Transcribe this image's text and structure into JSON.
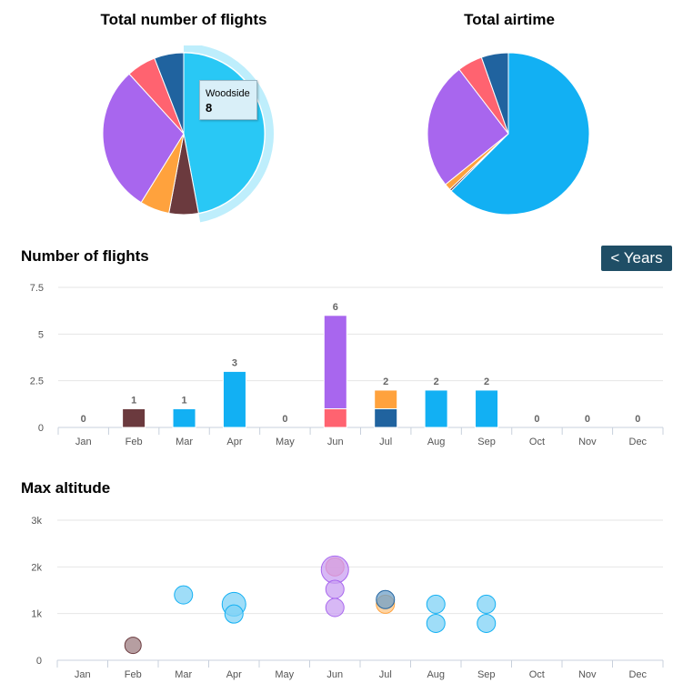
{
  "charts": {
    "pie_flights_title": "Total number of flights",
    "pie_airtime_title": "Total airtime",
    "bar_title": "Number of flights",
    "bubble_title": "Max altitude",
    "years_button": "< Years"
  },
  "tooltip": {
    "name": "Woodside",
    "value": "8"
  },
  "chart_data": [
    {
      "type": "pie",
      "title": "Total number of flights",
      "slices": [
        {
          "name": "Woodside",
          "value": 8,
          "color": "#29c8f5",
          "highlighted": true
        },
        {
          "name": "",
          "value": 1,
          "color": "#6b3a3e"
        },
        {
          "name": "",
          "value": 1,
          "color": "#ffa23d"
        },
        {
          "name": "",
          "value": 5,
          "color": "#a866ee"
        },
        {
          "name": "",
          "value": 1,
          "color": "#ff6370"
        },
        {
          "name": "",
          "value": 1,
          "color": "#20639f"
        }
      ]
    },
    {
      "type": "pie",
      "title": "Total airtime",
      "slices": [
        {
          "name": "",
          "value": 62.5,
          "color": "#12b0f3"
        },
        {
          "name": "",
          "value": 0.4,
          "color": "#6b3a3e"
        },
        {
          "name": "",
          "value": 1.3,
          "color": "#ffa23d"
        },
        {
          "name": "",
          "value": 25.4,
          "color": "#a866ee"
        },
        {
          "name": "",
          "value": 5.0,
          "color": "#ff6370"
        },
        {
          "name": "",
          "value": 5.4,
          "color": "#20639f"
        }
      ]
    },
    {
      "type": "bar",
      "title": "Number of flights",
      "categories": [
        "Jan",
        "Feb",
        "Mar",
        "Apr",
        "May",
        "Jun",
        "Jul",
        "Aug",
        "Sep",
        "Oct",
        "Nov",
        "Dec"
      ],
      "ylim": [
        0,
        7.5
      ],
      "yticks": [
        "0",
        "2.5",
        "5",
        "7.5"
      ],
      "ytick_values": [
        0,
        2.5,
        5,
        7.5
      ],
      "totals": [
        "0",
        "1",
        "1",
        "3",
        "0",
        "6",
        "2",
        "2",
        "2",
        "0",
        "0",
        "0"
      ],
      "stacks": [
        [],
        [
          {
            "value": 1,
            "color": "#6b3a3e"
          }
        ],
        [
          {
            "value": 1,
            "color": "#12b0f3"
          }
        ],
        [
          {
            "value": 3,
            "color": "#12b0f3"
          }
        ],
        [],
        [
          {
            "value": 1,
            "color": "#ff6370"
          },
          {
            "value": 5,
            "color": "#a866ee"
          }
        ],
        [
          {
            "value": 1,
            "color": "#20639f"
          },
          {
            "value": 1,
            "color": "#ffa23d"
          }
        ],
        [
          {
            "value": 2,
            "color": "#12b0f3"
          }
        ],
        [
          {
            "value": 2,
            "color": "#12b0f3"
          }
        ],
        [],
        [],
        []
      ]
    },
    {
      "type": "scatter",
      "title": "Max altitude",
      "categories": [
        "Jan",
        "Feb",
        "Mar",
        "Apr",
        "May",
        "Jun",
        "Jul",
        "Aug",
        "Sep",
        "Oct",
        "Nov",
        "Dec"
      ],
      "ylim": [
        0,
        3000
      ],
      "yticks": [
        "0",
        "1k",
        "2k",
        "3k"
      ],
      "ytick_values": [
        0,
        1000,
        2000,
        3000
      ],
      "points": [
        {
          "month": 1,
          "y": 320,
          "r": 9,
          "fill": "#9d7e82",
          "stroke": "#6b3a3e"
        },
        {
          "month": 2,
          "y": 1400,
          "r": 10,
          "fill": "#7fd1f6",
          "stroke": "#12b0f3"
        },
        {
          "month": 3,
          "y": 1200,
          "r": 13,
          "fill": "#7fd1f6",
          "stroke": "#12b0f3"
        },
        {
          "month": 3,
          "y": 990,
          "r": 10,
          "fill": "#7fd1f6",
          "stroke": "#12b0f3"
        },
        {
          "month": 5,
          "y": 2000,
          "r": 10,
          "fill": "#ff9aa2",
          "stroke": "#ff6370"
        },
        {
          "month": 5,
          "y": 1940,
          "r": 15,
          "fill": "#c9a0f2",
          "stroke": "#a866ee"
        },
        {
          "month": 5,
          "y": 1520,
          "r": 10,
          "fill": "#c9a0f2",
          "stroke": "#a866ee"
        },
        {
          "month": 5,
          "y": 1130,
          "r": 10,
          "fill": "#c9a0f2",
          "stroke": "#a866ee"
        },
        {
          "month": 6,
          "y": 1200,
          "r": 10,
          "fill": "#ffc684",
          "stroke": "#ffa23d"
        },
        {
          "month": 6,
          "y": 1300,
          "r": 10,
          "fill": "#6fa0c8",
          "stroke": "#20639f"
        },
        {
          "month": 7,
          "y": 1200,
          "r": 10,
          "fill": "#7fd1f6",
          "stroke": "#12b0f3"
        },
        {
          "month": 7,
          "y": 790,
          "r": 10,
          "fill": "#7fd1f6",
          "stroke": "#12b0f3"
        },
        {
          "month": 8,
          "y": 1200,
          "r": 10,
          "fill": "#7fd1f6",
          "stroke": "#12b0f3"
        },
        {
          "month": 8,
          "y": 790,
          "r": 10,
          "fill": "#7fd1f6",
          "stroke": "#12b0f3"
        }
      ]
    }
  ]
}
